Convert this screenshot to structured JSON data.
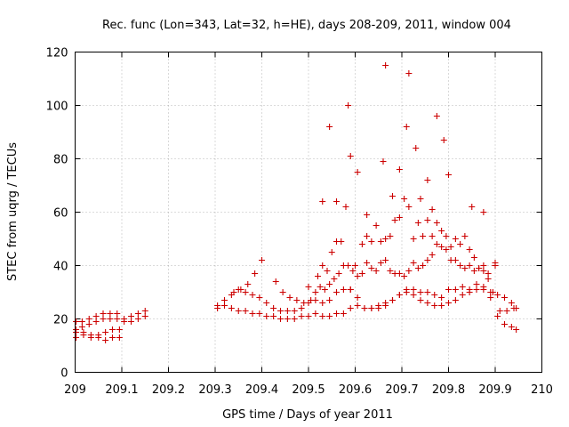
{
  "chart_data": {
    "type": "scatter",
    "title": "Rec. func (Lon=343, Lat=32, h=HE), days 208-209, 2011, window 004",
    "xlabel": "GPS time / Days of year 2011",
    "ylabel": "STEC from uqrg / TECUs",
    "xlim": [
      209,
      210
    ],
    "ylim": [
      0,
      120
    ],
    "xticks": [
      "209",
      "209.1",
      "209.2",
      "209.3",
      "209.4",
      "209.5",
      "209.6",
      "209.7",
      "209.8",
      "209.9",
      "210"
    ],
    "yticks": [
      "0",
      "20",
      "40",
      "60",
      "80",
      "100",
      "120"
    ],
    "grid": true,
    "marker": "+",
    "color": "#cc0000",
    "series": [
      {
        "name": "STEC",
        "x": [
          209.002,
          209.015,
          209.03,
          209.045,
          209.06,
          209.075,
          209.09,
          209.105,
          209.12,
          209.135,
          209.15,
          209.002,
          209.015,
          209.03,
          209.045,
          209.06,
          209.075,
          209.09,
          209.105,
          209.12,
          209.135,
          209.15,
          209.002,
          209.018,
          209.034,
          209.05,
          209.065,
          209.08,
          209.095,
          209.002,
          209.018,
          209.034,
          209.05,
          209.065,
          209.08,
          209.095,
          209.305,
          209.32,
          209.335,
          209.35,
          209.365,
          209.38,
          209.395,
          209.41,
          209.425,
          209.44,
          209.455,
          209.47,
          209.485,
          209.5,
          209.515,
          209.53,
          209.545,
          209.56,
          209.575,
          209.59,
          209.605,
          209.62,
          209.635,
          209.65,
          209.665,
          209.68,
          209.695,
          209.71,
          209.725,
          209.74,
          209.755,
          209.77,
          209.785,
          209.8,
          209.815,
          209.83,
          209.845,
          209.86,
          209.875,
          209.89,
          209.905,
          209.92,
          209.935,
          209.945,
          209.305,
          209.32,
          209.335,
          209.35,
          209.365,
          209.38,
          209.395,
          209.41,
          209.425,
          209.44,
          209.455,
          209.47,
          209.485,
          209.5,
          209.515,
          209.53,
          209.545,
          209.56,
          209.575,
          209.59,
          209.605,
          209.62,
          209.635,
          209.65,
          209.665,
          209.68,
          209.695,
          209.71,
          209.725,
          209.74,
          209.755,
          209.77,
          209.785,
          209.8,
          209.815,
          209.83,
          209.845,
          209.86,
          209.875,
          209.89,
          209.905,
          209.92,
          209.935,
          209.945,
          209.34,
          209.355,
          209.37,
          209.385,
          209.4,
          209.43,
          209.445,
          209.46,
          209.475,
          209.49,
          209.505,
          209.515,
          209.525,
          209.535,
          209.545,
          209.555,
          209.565,
          209.575,
          209.585,
          209.595,
          209.605,
          209.615,
          209.625,
          209.635,
          209.645,
          209.655,
          209.665,
          209.675,
          209.685,
          209.695,
          209.705,
          209.715,
          209.725,
          209.735,
          209.745,
          209.755,
          209.765,
          209.775,
          209.785,
          209.795,
          209.805,
          209.815,
          209.825,
          209.835,
          209.845,
          209.855,
          209.865,
          209.875,
          209.885,
          209.895,
          209.9,
          209.91,
          209.925,
          209.94,
          209.5,
          209.52,
          209.53,
          209.54,
          209.55,
          209.56,
          209.57,
          209.58,
          209.59,
          209.6,
          209.615,
          209.625,
          209.635,
          209.645,
          209.655,
          209.665,
          209.675,
          209.685,
          209.695,
          209.705,
          209.715,
          209.725,
          209.735,
          209.745,
          209.755,
          209.765,
          209.775,
          209.785,
          209.795,
          209.805,
          209.815,
          209.825,
          209.835,
          209.845,
          209.855,
          209.865,
          209.875,
          209.885,
          209.9,
          209.585,
          209.665,
          209.715,
          209.73,
          209.775,
          209.79,
          209.545,
          209.59,
          209.605,
          209.625,
          209.66,
          209.695,
          209.71,
          209.755,
          209.8,
          209.765,
          209.74,
          209.68,
          209.56,
          209.53,
          209.85,
          209.875
        ],
        "y": [
          19,
          19,
          20,
          21,
          22,
          22,
          22,
          20,
          21,
          22,
          23,
          16,
          17,
          18,
          19,
          20,
          20,
          20,
          19,
          19,
          20,
          21,
          15,
          15,
          14,
          14,
          15,
          16,
          16,
          13,
          14,
          13,
          13,
          12,
          13,
          13,
          24,
          25,
          24,
          23,
          23,
          22,
          22,
          21,
          21,
          20,
          20,
          20,
          21,
          21,
          22,
          21,
          21,
          22,
          22,
          24,
          25,
          24,
          24,
          25,
          26,
          27,
          29,
          31,
          29,
          27,
          26,
          25,
          25,
          26,
          27,
          29,
          30,
          31,
          32,
          30,
          29,
          28,
          26,
          24,
          25,
          27,
          29,
          31,
          30,
          29,
          28,
          26,
          24,
          23,
          23,
          23,
          24,
          26,
          27,
          26,
          27,
          30,
          31,
          31,
          28,
          24,
          24,
          24,
          25,
          27,
          29,
          30,
          31,
          30,
          30,
          29,
          28,
          31,
          31,
          32,
          31,
          33,
          31,
          28,
          21,
          18,
          17,
          16,
          30,
          31,
          33,
          37,
          42,
          34,
          30,
          28,
          27,
          26,
          27,
          30,
          32,
          31,
          33,
          35,
          37,
          40,
          40,
          38,
          36,
          37,
          41,
          39,
          38,
          41,
          42,
          38,
          37,
          37,
          36,
          38,
          41,
          39,
          40,
          42,
          44,
          48,
          47,
          46,
          42,
          42,
          40,
          39,
          40,
          38,
          39,
          40,
          35,
          30,
          41,
          23,
          23,
          24,
          32,
          36,
          40,
          38,
          45,
          49,
          49,
          62,
          31,
          40,
          48,
          51,
          49,
          55,
          49,
          50,
          51,
          57,
          58,
          65,
          62,
          50,
          56,
          51,
          57,
          51,
          56,
          53,
          51,
          47,
          50,
          48,
          51,
          46,
          43,
          39,
          38,
          37,
          40,
          100,
          115,
          112,
          84,
          96,
          87,
          92,
          81,
          75,
          59,
          79,
          76,
          92,
          72,
          74,
          61,
          65,
          66,
          64,
          64,
          62,
          60
        ]
      }
    ]
  }
}
